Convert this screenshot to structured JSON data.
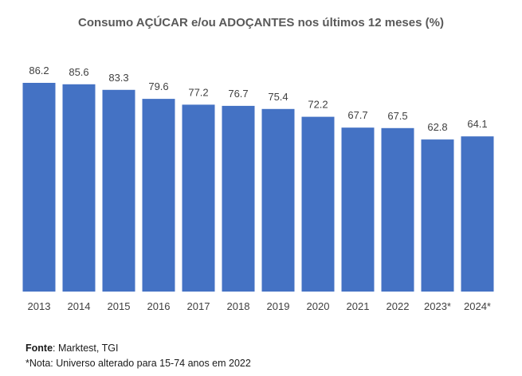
{
  "chart_data": {
    "type": "bar",
    "title": "Consumo AÇÚCAR e/ou ADOÇANTES nos últimos 12 meses (%)",
    "categories": [
      "2013",
      "2014",
      "2015",
      "2016",
      "2017",
      "2018",
      "2019",
      "2020",
      "2021",
      "2022",
      "2023*",
      "2024*"
    ],
    "series": [
      {
        "name": "Consumo AÇÚCAR e/ou ADOÇANTES (%)",
        "values": [
          86.2,
          85.6,
          83.3,
          79.6,
          77.2,
          76.7,
          75.4,
          72.2,
          67.7,
          67.5,
          62.8,
          64.1
        ]
      }
    ],
    "value_labels": [
      "86.2",
      "85.6",
      "83.3",
      "79.6",
      "77.2",
      "76.7",
      "75.4",
      "72.2",
      "67.7",
      "67.5",
      "62.8",
      "64.1"
    ],
    "xlabel": "",
    "ylabel": "",
    "ylim": [
      0,
      86.2
    ],
    "grid": false,
    "bar_color": "#4472C4"
  },
  "footer": {
    "source_label": "Fonte",
    "source_text": ": Marktest, TGI",
    "note": "*Nota: Universo alterado para 15-74 anos em 2022"
  }
}
